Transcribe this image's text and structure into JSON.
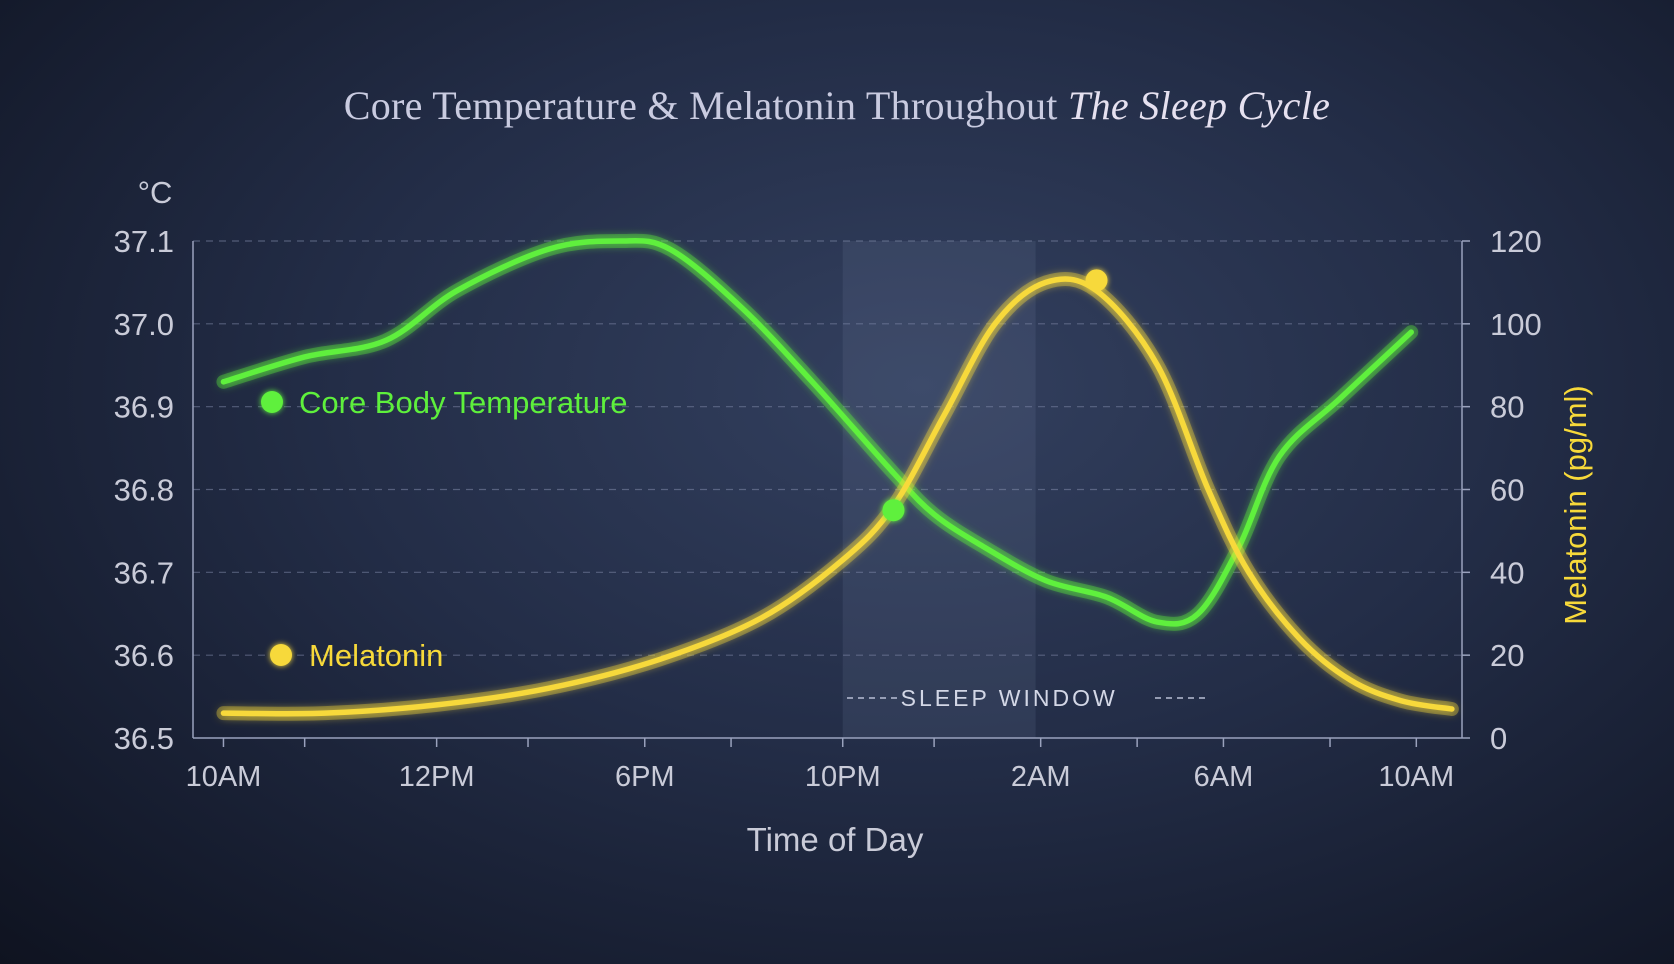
{
  "chart_data": {
    "type": "line",
    "title_main": "Core Temperature & Melatonin Throughout",
    "title_italic": "The Sleep Cycle",
    "xlabel": "Time of Day",
    "ylabel_left_unit": "°C",
    "ylabel_right": "Melatonin (pg/ml)",
    "x_ticks": [
      "10AM",
      "12PM",
      "6PM",
      "10PM",
      "2AM",
      "6AM",
      "10AM"
    ],
    "x_tick_pos": [
      0.2,
      2.3,
      4.35,
      6.3,
      8.25,
      10.05,
      11.95
    ],
    "x_minor": [
      1.0,
      3.2,
      5.2,
      7.2,
      9.2,
      11.1
    ],
    "y_left": {
      "ticks": [
        "36.5",
        "36.6",
        "36.7",
        "36.8",
        "36.9",
        "37.0",
        "37.1"
      ],
      "lim": [
        36.5,
        37.1
      ]
    },
    "y_right": {
      "ticks": [
        "0",
        "20",
        "40",
        "60",
        "80",
        "100",
        "120"
      ],
      "lim": [
        0,
        120
      ]
    },
    "x_lim": [
      -0.1,
      12.4
    ],
    "grid": "dashed horizontal",
    "sleep_window": {
      "label": "SLEEP WINDOW",
      "x_start": 6.3,
      "x_end": 8.2
    },
    "series": [
      {
        "name": "Core Body Temperature",
        "axis": "left",
        "color": "#5ef03c",
        "x": [
          0.2,
          1.0,
          1.8,
          2.5,
          3.4,
          4.1,
          4.6,
          5.3,
          6.0,
          6.8,
          7.2,
          7.7,
          8.3,
          8.9,
          9.4,
          9.8,
          10.2,
          10.6,
          11.2,
          11.9
        ],
        "y": [
          36.93,
          36.96,
          36.98,
          37.04,
          37.09,
          37.1,
          37.09,
          37.02,
          36.93,
          36.82,
          36.77,
          36.73,
          36.69,
          36.67,
          36.64,
          36.65,
          36.73,
          36.84,
          36.91,
          36.99
        ]
      },
      {
        "name": "Melatonin",
        "axis": "right",
        "color": "#f7d93a",
        "x": [
          0.2,
          1.2,
          2.3,
          3.4,
          4.5,
          5.5,
          6.3,
          6.8,
          7.3,
          7.8,
          8.3,
          8.8,
          9.4,
          9.9,
          10.3,
          10.8,
          11.3,
          11.8,
          12.3
        ],
        "y": [
          6,
          6,
          8,
          12,
          19,
          29,
          43,
          56,
          78,
          100,
          110,
          108,
          90,
          60,
          40,
          24,
          14,
          9,
          7
        ]
      }
    ],
    "markers": [
      {
        "series": "Core Body Temperature",
        "x": 6.8,
        "y": 36.775,
        "axis": "left",
        "color": "#5ef03c"
      },
      {
        "series": "Melatonin",
        "x": 8.8,
        "y": 110.5,
        "axis": "right",
        "color": "#f7d93a"
      }
    ],
    "legend": [
      {
        "label": "Core Body Temperature",
        "color": "#5ef03c",
        "placement": "upper-left"
      },
      {
        "label": "Melatonin",
        "color": "#f7d93a",
        "placement": "lower-left"
      }
    ]
  }
}
